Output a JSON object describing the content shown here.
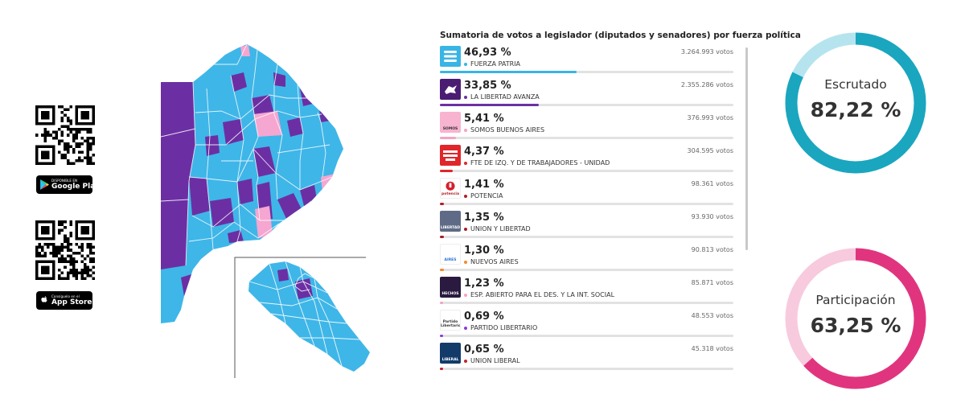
{
  "stores": {
    "google_play": {
      "small": "DISPONIBLE EN",
      "big": "Google Play"
    },
    "app_store": {
      "small": "Consíguelo en el",
      "big": "App Store"
    }
  },
  "results": {
    "title": "Sumatoria de votos a legislador (diputados y senadores) por fuerza política",
    "parties": [
      {
        "pct": "46,93 %",
        "share": 46.93,
        "name": "FUERZA PATRIA",
        "votes": "3.264.993 votos",
        "color": "#39b5e5",
        "logo": "fuerza-patria-logo"
      },
      {
        "pct": "33,85 %",
        "share": 33.85,
        "name": "LA LIBERTAD AVANZA",
        "votes": "2.355.286 votos",
        "color": "#6c2fa3",
        "logo": "libertad-avanza-logo"
      },
      {
        "pct": "5,41 %",
        "share": 5.41,
        "name": "SOMOS BUENOS AIRES",
        "votes": "376.993 votos",
        "color": "#f5a3c4",
        "logo": "somos-logo",
        "logo_text": "SOMOS"
      },
      {
        "pct": "4,37 %",
        "share": 4.37,
        "name": "FTE DE IZQ. Y DE TRABAJADORES - UNIDAD",
        "votes": "304.595 votos",
        "color": "#e0262b",
        "logo": "fit-logo"
      },
      {
        "pct": "1,41 %",
        "share": 1.41,
        "name": "POTENCIA",
        "votes": "98.361 votos",
        "color": "#b01e24",
        "logo": "potencia-logo",
        "logo_text": "potencia"
      },
      {
        "pct": "1,35 %",
        "share": 1.35,
        "name": "UNION Y LIBERTAD",
        "votes": "93.930 votos",
        "color": "#a51d2d",
        "logo": "union-libertad-logo",
        "logo_text": "LIBERTAD"
      },
      {
        "pct": "1,30 %",
        "share": 1.3,
        "name": "NUEVOS AIRES",
        "votes": "90.813 votos",
        "color": "#f28b2b",
        "logo": "nuevos-aires-logo",
        "logo_text": "AIRES"
      },
      {
        "pct": "1,23 %",
        "share": 1.23,
        "name": "ESP. ABIERTO PARA EL DES. Y LA INT. SOCIAL",
        "votes": "85.871 votos",
        "color": "#f7a3c3",
        "logo": "hechos-logo",
        "logo_text": "HECHOS"
      },
      {
        "pct": "0,69 %",
        "share": 0.69,
        "name": "PARTIDO LIBERTARIO",
        "votes": "48.553 votos",
        "color": "#8e3ad8",
        "logo": "partido-libertario-logo",
        "logo_text": "Partido Libertario"
      },
      {
        "pct": "0,65 %",
        "share": 0.65,
        "name": "UNION LIBERAL",
        "votes": "45.318 votos",
        "color": "#c2232a",
        "logo": "union-liberal-logo",
        "logo_text": "LIBERAL"
      }
    ]
  },
  "gauges": {
    "escrutado": {
      "label": "Escrutado",
      "value": "82,22 %",
      "fraction": 0.8222,
      "color": "#1aa6bf",
      "track": "#b6e4ee"
    },
    "participacion": {
      "label": "Participación",
      "value": "63,25 %",
      "fraction": 0.6325,
      "color": "#e0357e",
      "track": "#f8cade"
    }
  }
}
